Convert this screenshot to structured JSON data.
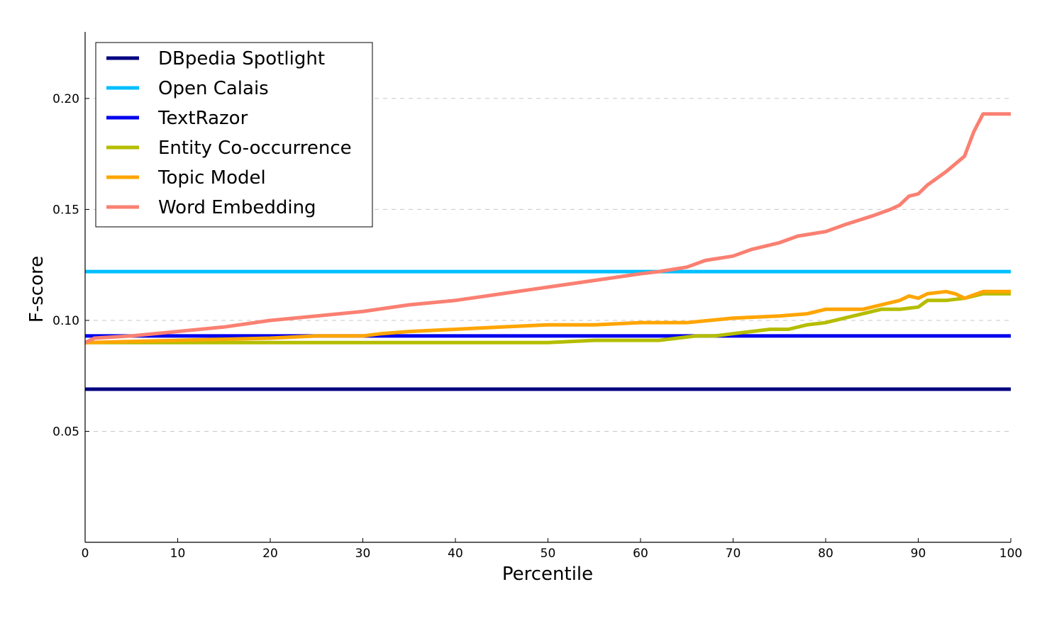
{
  "chart_data": {
    "type": "line",
    "title": "",
    "xlabel": "Percentile",
    "ylabel": "F-score",
    "xlim": [
      0,
      100
    ],
    "ylim": [
      0.0,
      0.23
    ],
    "x_ticks": [
      0,
      10,
      20,
      30,
      40,
      50,
      60,
      70,
      80,
      90,
      100
    ],
    "x_tick_labels": [
      "0",
      "10",
      "20",
      "30",
      "40",
      "50",
      "60",
      "70",
      "80",
      "90",
      "100"
    ],
    "y_ticks": [
      0.05,
      0.1,
      0.15,
      0.2
    ],
    "y_tick_labels": [
      "0.05",
      "0.10",
      "0.15",
      "0.20"
    ],
    "grid": "horizontal-dashed",
    "legend_position": "top-left",
    "series": [
      {
        "name": "DBpedia Spotlight",
        "color": "#000080",
        "x": [
          0,
          100
        ],
        "y": [
          0.069,
          0.069
        ]
      },
      {
        "name": "Open Calais",
        "color": "#00bfff",
        "x": [
          0,
          100
        ],
        "y": [
          0.122,
          0.122
        ]
      },
      {
        "name": "TextRazor",
        "color": "#0000ee",
        "x": [
          0,
          100
        ],
        "y": [
          0.093,
          0.093
        ]
      },
      {
        "name": "Entity Co-occurrence",
        "color": "#b5bd00",
        "x": [
          0,
          10,
          20,
          30,
          40,
          50,
          55,
          60,
          62,
          64,
          66,
          68,
          70,
          72,
          74,
          76,
          78,
          80,
          82,
          84,
          86,
          88,
          90,
          91,
          93,
          95,
          97,
          100
        ],
        "y": [
          0.09,
          0.09,
          0.09,
          0.09,
          0.09,
          0.09,
          0.091,
          0.091,
          0.091,
          0.092,
          0.093,
          0.093,
          0.094,
          0.095,
          0.096,
          0.096,
          0.098,
          0.099,
          0.101,
          0.103,
          0.105,
          0.105,
          0.106,
          0.109,
          0.109,
          0.11,
          0.112,
          0.112
        ]
      },
      {
        "name": "Topic Model",
        "color": "#ffa500",
        "x": [
          0,
          10,
          20,
          25,
          30,
          32,
          35,
          40,
          45,
          50,
          55,
          60,
          65,
          70,
          75,
          78,
          80,
          82,
          84,
          86,
          88,
          89,
          90,
          91,
          93,
          94,
          95,
          97,
          100
        ],
        "y": [
          0.09,
          0.091,
          0.092,
          0.093,
          0.093,
          0.094,
          0.095,
          0.096,
          0.097,
          0.098,
          0.098,
          0.099,
          0.099,
          0.101,
          0.102,
          0.103,
          0.105,
          0.105,
          0.105,
          0.107,
          0.109,
          0.111,
          0.11,
          0.112,
          0.113,
          0.112,
          0.11,
          0.113,
          0.113
        ]
      },
      {
        "name": "Word Embedding",
        "color": "#fa8072",
        "x": [
          0,
          1,
          5,
          10,
          15,
          20,
          25,
          30,
          35,
          40,
          45,
          50,
          55,
          60,
          62,
          65,
          67,
          70,
          72,
          75,
          77,
          80,
          82,
          85,
          87,
          88,
          89,
          90,
          91,
          93,
          95,
          96,
          97,
          100
        ],
        "y": [
          0.09,
          0.092,
          0.093,
          0.095,
          0.097,
          0.1,
          0.102,
          0.104,
          0.107,
          0.109,
          0.112,
          0.115,
          0.118,
          0.121,
          0.122,
          0.124,
          0.127,
          0.129,
          0.132,
          0.135,
          0.138,
          0.14,
          0.143,
          0.147,
          0.15,
          0.152,
          0.156,
          0.157,
          0.161,
          0.167,
          0.174,
          0.185,
          0.193,
          0.193
        ]
      }
    ]
  }
}
